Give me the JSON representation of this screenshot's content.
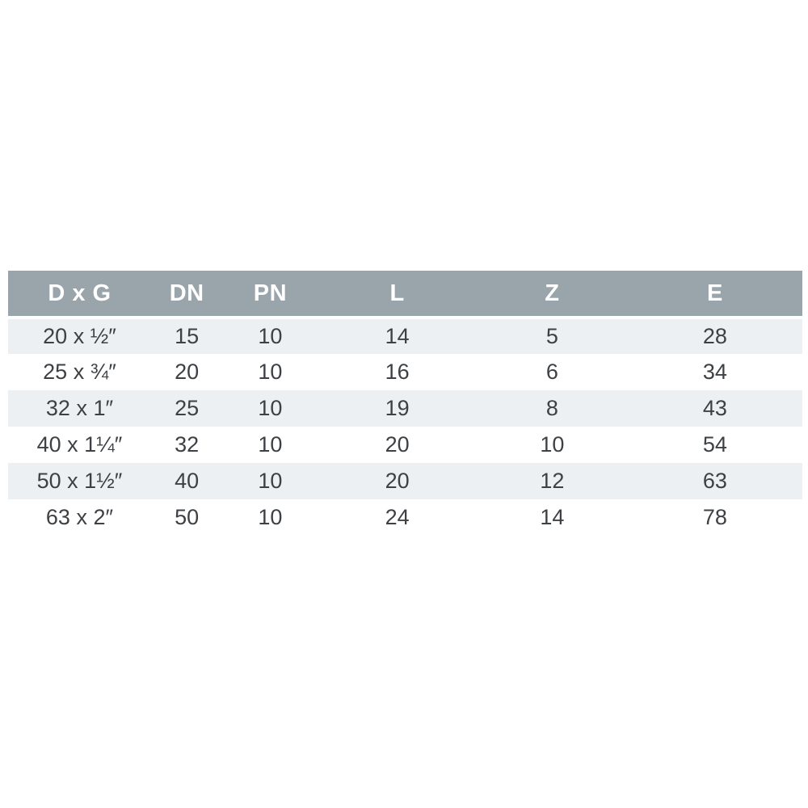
{
  "chart_data": {
    "type": "table",
    "columns": [
      "D x G",
      "DN",
      "PN",
      "L",
      "Z",
      "E"
    ],
    "rows": [
      [
        "20 x ½″",
        "15",
        "10",
        "14",
        "5",
        "28"
      ],
      [
        "25 x ¾″",
        "20",
        "10",
        "16",
        "6",
        "34"
      ],
      [
        "32 x 1″",
        "25",
        "10",
        "19",
        "8",
        "43"
      ],
      [
        "40 x 1¼″",
        "32",
        "10",
        "20",
        "10",
        "54"
      ],
      [
        "50 x 1½″",
        "40",
        "10",
        "20",
        "12",
        "63"
      ],
      [
        "63 x 2″",
        "50",
        "10",
        "24",
        "14",
        "78"
      ]
    ],
    "legend_position": "none",
    "grid": false
  },
  "colors": {
    "header_bg": "#9aa4ab",
    "header_text": "#ffffff",
    "row_alt_bg": "#edf0f2",
    "row_bg": "#ffffff",
    "cell_text": "#3d4145",
    "page_bg": "#ffffff"
  }
}
